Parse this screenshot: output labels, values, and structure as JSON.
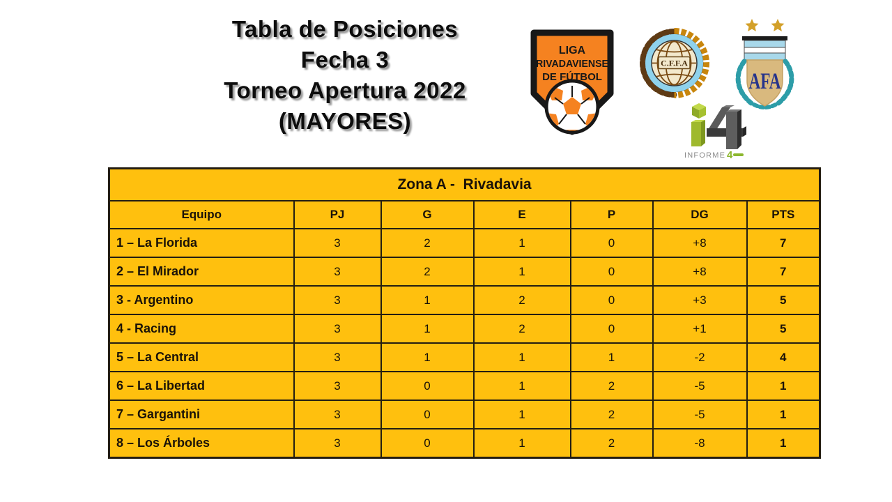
{
  "title": {
    "lines": [
      "Tabla de Posiciones",
      "Fecha 3",
      "Torneo Apertura 2022",
      "(MAYORES)"
    ]
  },
  "logos": {
    "liga": {
      "alt": "Liga Rivadaviense de Fútbol",
      "line1": "LIGA",
      "line2": "RIVADAVIENSE",
      "line3": "DE FÚTBOL",
      "shield_color": "#F58220"
    },
    "cffa": {
      "alt": "C.F.F.A.",
      "label": "C.F.F.A",
      "ring_color": "#8FD2EC"
    },
    "afa": {
      "alt": "AFA",
      "label": "AFA",
      "laurel_color": "#2D9DA8"
    },
    "informe4": {
      "alt": "Informe4",
      "word": "INFORME",
      "number": "4",
      "green": "#9FB92D"
    }
  },
  "table": {
    "zone_title": "Zona A -  Rivadavia",
    "columns": [
      "Equipo",
      "PJ",
      "G",
      "E",
      "P",
      "DG",
      "PTS"
    ],
    "rows": [
      {
        "equipo": "1 – La Florida",
        "pj": "3",
        "g": "2",
        "e": "1",
        "p": "0",
        "dg": "+8",
        "pts": "7"
      },
      {
        "equipo": "2 – El Mirador",
        "pj": "3",
        "g": "2",
        "e": "1",
        "p": "0",
        "dg": "+8",
        "pts": "7"
      },
      {
        "equipo": "3 - Argentino",
        "pj": "3",
        "g": "1",
        "e": "2",
        "p": "0",
        "dg": "+3",
        "pts": "5"
      },
      {
        "equipo": "4 - Racing",
        "pj": "3",
        "g": "1",
        "e": "2",
        "p": "0",
        "dg": "+1",
        "pts": "5"
      },
      {
        "equipo": "5 – La Central",
        "pj": "3",
        "g": "1",
        "e": "1",
        "p": "1",
        "dg": "-2",
        "pts": "4"
      },
      {
        "equipo": "6 – La Libertad",
        "pj": "3",
        "g": "0",
        "e": "1",
        "p": "2",
        "dg": "-5",
        "pts": "1"
      },
      {
        "equipo": "7 – Gargantini",
        "pj": "3",
        "g": "0",
        "e": "1",
        "p": "2",
        "dg": "-5",
        "pts": "1"
      },
      {
        "equipo": "8 – Los Árboles",
        "pj": "3",
        "g": "0",
        "e": "1",
        "p": "2",
        "dg": "-8",
        "pts": "1"
      }
    ],
    "colors": {
      "cell_bg": "#FFC00E",
      "border": "#241D12"
    }
  }
}
